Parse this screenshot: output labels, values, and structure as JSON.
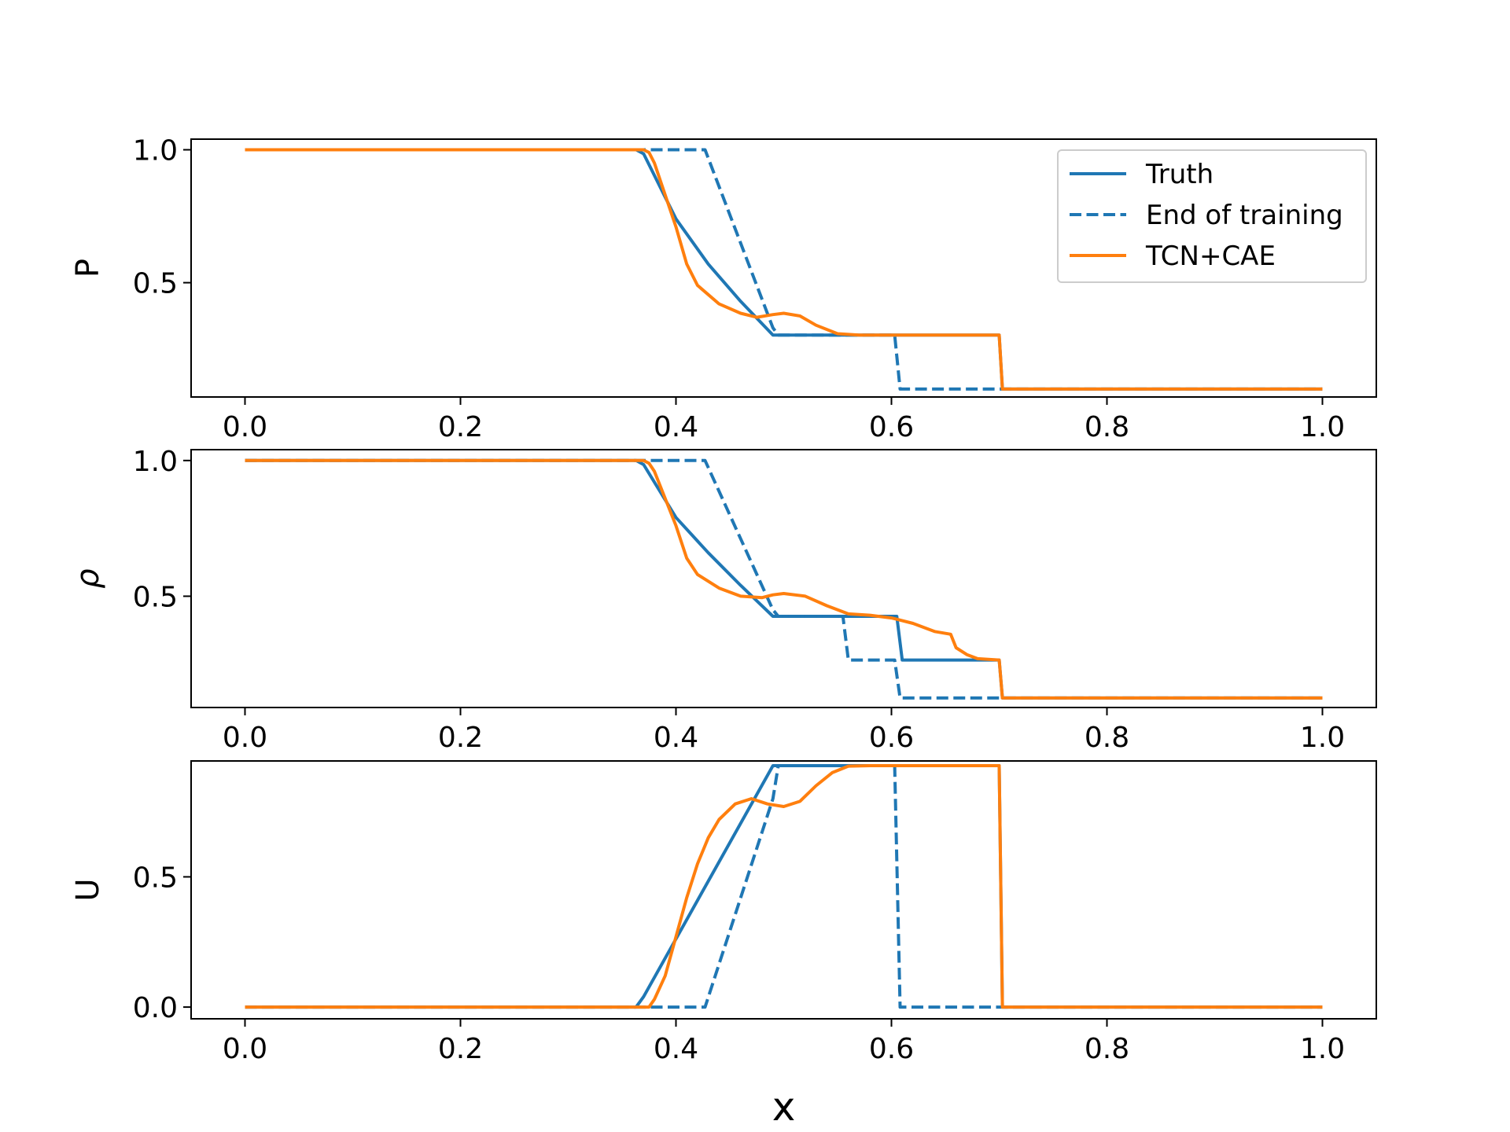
{
  "colors": {
    "truth": "#1f77b4",
    "end_of_training": "#1f77b4",
    "tcn_cae": "#ff7f0e",
    "axes": "#000000",
    "legend_border": "#cccccc"
  },
  "chart_data": [
    {
      "type": "line",
      "ylabel": "P",
      "xlabel": "",
      "xlim": [
        -0.05,
        1.05
      ],
      "ylim": [
        0.07,
        1.04
      ],
      "xticks": [
        0.0,
        0.2,
        0.4,
        0.6,
        0.8,
        1.0
      ],
      "xtick_labels": [
        "0.0",
        "0.2",
        "0.4",
        "0.6",
        "0.8",
        "1.0"
      ],
      "yticks": [
        0.5,
        1.0
      ],
      "ytick_labels": [
        "0.5",
        "1.0"
      ],
      "grid": false,
      "legend": {
        "position": "upper right",
        "entries": [
          "Truth",
          "End of training",
          "TCN+CAE"
        ]
      },
      "series": [
        {
          "name": "Truth",
          "style": "solid",
          "points": [
            [
              0.0,
              1.0
            ],
            [
              0.363,
              1.0
            ],
            [
              0.37,
              0.985
            ],
            [
              0.4,
              0.74
            ],
            [
              0.43,
              0.57
            ],
            [
              0.46,
              0.43
            ],
            [
              0.49,
              0.303
            ],
            [
              0.5,
              0.303
            ],
            [
              0.7,
              0.303
            ],
            [
              0.703,
              0.1
            ],
            [
              1.0,
              0.1
            ]
          ]
        },
        {
          "name": "End of training",
          "style": "dashed",
          "points": [
            [
              0.0,
              1.0
            ],
            [
              0.427,
              1.0
            ],
            [
              0.49,
              0.33
            ],
            [
              0.495,
              0.303
            ],
            [
              0.603,
              0.303
            ],
            [
              0.608,
              0.1
            ],
            [
              1.0,
              0.1
            ]
          ]
        },
        {
          "name": "TCN+CAE",
          "style": "solid",
          "points": [
            [
              0.0,
              1.0
            ],
            [
              0.37,
              1.0
            ],
            [
              0.375,
              0.99
            ],
            [
              0.38,
              0.95
            ],
            [
              0.39,
              0.83
            ],
            [
              0.4,
              0.71
            ],
            [
              0.41,
              0.57
            ],
            [
              0.42,
              0.49
            ],
            [
              0.44,
              0.42
            ],
            [
              0.46,
              0.385
            ],
            [
              0.475,
              0.37
            ],
            [
              0.49,
              0.38
            ],
            [
              0.5,
              0.385
            ],
            [
              0.515,
              0.375
            ],
            [
              0.53,
              0.34
            ],
            [
              0.55,
              0.308
            ],
            [
              0.57,
              0.303
            ],
            [
              0.7,
              0.303
            ],
            [
              0.703,
              0.1
            ],
            [
              1.0,
              0.1
            ]
          ]
        }
      ]
    },
    {
      "type": "line",
      "ylabel": "ρ",
      "xlabel": "",
      "xlim": [
        -0.05,
        1.05
      ],
      "ylim": [
        0.09,
        1.04
      ],
      "xticks": [
        0.0,
        0.2,
        0.4,
        0.6,
        0.8,
        1.0
      ],
      "xtick_labels": [
        "0.0",
        "0.2",
        "0.4",
        "0.6",
        "0.8",
        "1.0"
      ],
      "yticks": [
        0.5,
        1.0
      ],
      "ytick_labels": [
        "0.5",
        "1.0"
      ],
      "grid": false,
      "series": [
        {
          "name": "Truth",
          "style": "solid",
          "points": [
            [
              0.0,
              1.0
            ],
            [
              0.363,
              1.0
            ],
            [
              0.37,
              0.985
            ],
            [
              0.4,
              0.79
            ],
            [
              0.43,
              0.66
            ],
            [
              0.46,
              0.54
            ],
            [
              0.49,
              0.426
            ],
            [
              0.5,
              0.426
            ],
            [
              0.605,
              0.426
            ],
            [
              0.61,
              0.265
            ],
            [
              0.7,
              0.265
            ],
            [
              0.703,
              0.125
            ],
            [
              1.0,
              0.125
            ]
          ]
        },
        {
          "name": "End of training",
          "style": "dashed",
          "points": [
            [
              0.0,
              1.0
            ],
            [
              0.427,
              1.0
            ],
            [
              0.49,
              0.45
            ],
            [
              0.495,
              0.426
            ],
            [
              0.555,
              0.426
            ],
            [
              0.56,
              0.265
            ],
            [
              0.603,
              0.265
            ],
            [
              0.608,
              0.125
            ],
            [
              1.0,
              0.125
            ]
          ]
        },
        {
          "name": "TCN+CAE",
          "style": "solid",
          "points": [
            [
              0.0,
              1.0
            ],
            [
              0.37,
              1.0
            ],
            [
              0.375,
              0.99
            ],
            [
              0.38,
              0.96
            ],
            [
              0.39,
              0.86
            ],
            [
              0.4,
              0.76
            ],
            [
              0.41,
              0.64
            ],
            [
              0.42,
              0.58
            ],
            [
              0.44,
              0.53
            ],
            [
              0.46,
              0.5
            ],
            [
              0.48,
              0.495
            ],
            [
              0.49,
              0.505
            ],
            [
              0.5,
              0.51
            ],
            [
              0.52,
              0.5
            ],
            [
              0.54,
              0.465
            ],
            [
              0.56,
              0.435
            ],
            [
              0.58,
              0.43
            ],
            [
              0.6,
              0.42
            ],
            [
              0.62,
              0.4
            ],
            [
              0.64,
              0.37
            ],
            [
              0.655,
              0.36
            ],
            [
              0.66,
              0.31
            ],
            [
              0.67,
              0.285
            ],
            [
              0.68,
              0.27
            ],
            [
              0.7,
              0.265
            ],
            [
              0.703,
              0.125
            ],
            [
              1.0,
              0.125
            ]
          ]
        }
      ]
    },
    {
      "type": "line",
      "ylabel": "U",
      "xlabel": "x",
      "xlim": [
        -0.05,
        1.05
      ],
      "ylim": [
        -0.045,
        0.945
      ],
      "xticks": [
        0.0,
        0.2,
        0.4,
        0.6,
        0.8,
        1.0
      ],
      "xtick_labels": [
        "0.0",
        "0.2",
        "0.4",
        "0.6",
        "0.8",
        "1.0"
      ],
      "yticks": [
        0.0,
        0.5
      ],
      "ytick_labels": [
        "0.0",
        "0.5"
      ],
      "grid": false,
      "series": [
        {
          "name": "Truth",
          "style": "solid",
          "points": [
            [
              0.0,
              0.0
            ],
            [
              0.363,
              0.0
            ],
            [
              0.37,
              0.04
            ],
            [
              0.49,
              0.927
            ],
            [
              0.7,
              0.927
            ],
            [
              0.703,
              0.0
            ],
            [
              1.0,
              0.0
            ]
          ]
        },
        {
          "name": "End of training",
          "style": "dashed",
          "points": [
            [
              0.0,
              0.0
            ],
            [
              0.427,
              0.0
            ],
            [
              0.49,
              0.8
            ],
            [
              0.495,
              0.927
            ],
            [
              0.603,
              0.927
            ],
            [
              0.608,
              0.0
            ],
            [
              1.0,
              0.0
            ]
          ]
        },
        {
          "name": "TCN+CAE",
          "style": "solid",
          "points": [
            [
              0.0,
              0.0
            ],
            [
              0.375,
              0.0
            ],
            [
              0.38,
              0.03
            ],
            [
              0.39,
              0.12
            ],
            [
              0.4,
              0.27
            ],
            [
              0.41,
              0.42
            ],
            [
              0.42,
              0.55
            ],
            [
              0.43,
              0.65
            ],
            [
              0.44,
              0.72
            ],
            [
              0.455,
              0.78
            ],
            [
              0.47,
              0.8
            ],
            [
              0.485,
              0.78
            ],
            [
              0.5,
              0.77
            ],
            [
              0.515,
              0.79
            ],
            [
              0.53,
              0.85
            ],
            [
              0.545,
              0.9
            ],
            [
              0.56,
              0.925
            ],
            [
              0.58,
              0.927
            ],
            [
              0.7,
              0.927
            ],
            [
              0.703,
              0.0
            ],
            [
              1.0,
              0.0
            ]
          ]
        }
      ]
    }
  ]
}
